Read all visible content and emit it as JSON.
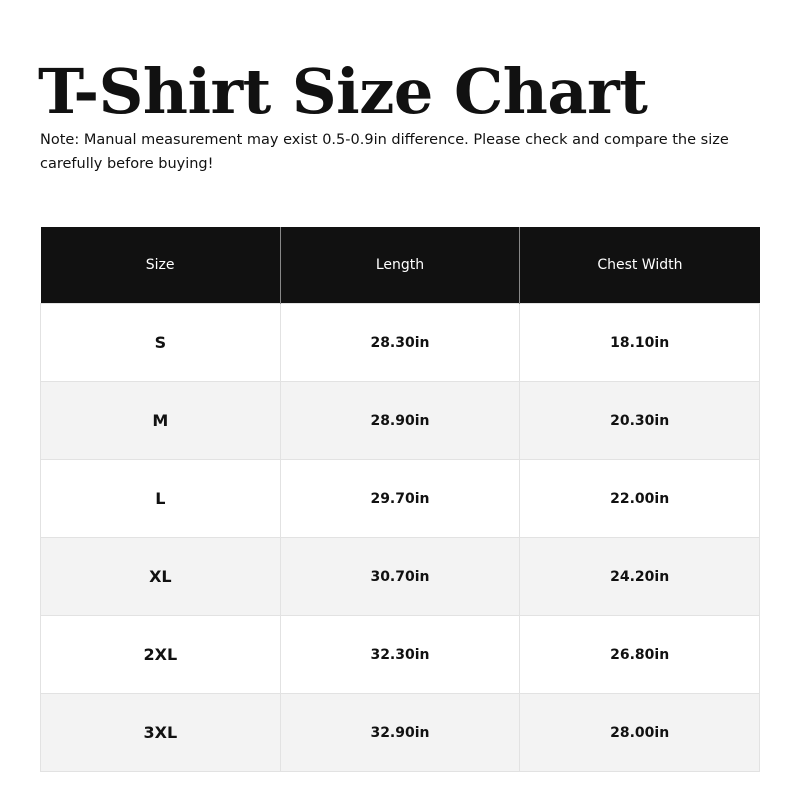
{
  "title": "T-Shirt Size Chart",
  "note": "Note: Manual measurement may exist 0.5-0.9in difference. Please check and compare the size carefully before buying!",
  "table": {
    "headers": [
      "Size",
      "Length",
      "Chest Width"
    ],
    "rows": [
      [
        "S",
        "28.30in",
        "18.10in"
      ],
      [
        "M",
        "28.90in",
        "20.30in"
      ],
      [
        "L",
        "29.70in",
        "22.00in"
      ],
      [
        "XL",
        "30.70in",
        "24.20in"
      ],
      [
        "2XL",
        "32.30in",
        "26.80in"
      ],
      [
        "3XL",
        "32.90in",
        "28.00in"
      ]
    ]
  },
  "colors": {
    "header_bg": "#111111",
    "alt_row_bg": "#f3f3f3"
  }
}
